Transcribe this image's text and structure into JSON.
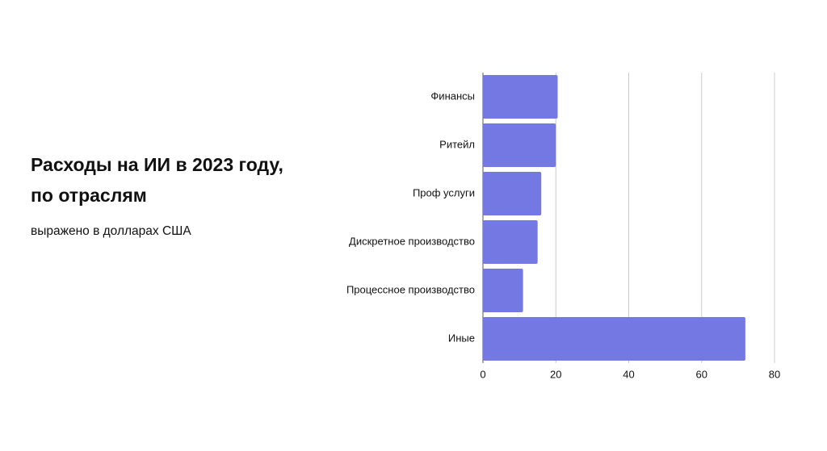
{
  "chart_data": {
    "type": "bar",
    "orientation": "horizontal",
    "title": [
      "Расходы на ИИ в 2023 году,",
      "по отраслям"
    ],
    "subtitle": "выражено в долларах США",
    "categories": [
      "Финансы",
      "Ритейл",
      "Проф услуги",
      "Дискретное производство",
      "Процессное производство",
      "Иные"
    ],
    "values": [
      20.5,
      20,
      16,
      15,
      11,
      72
    ],
    "color": "#7478e3",
    "xlim": [
      0,
      80
    ],
    "xticks": [
      0,
      20,
      40,
      60,
      80
    ],
    "grid": true
  }
}
